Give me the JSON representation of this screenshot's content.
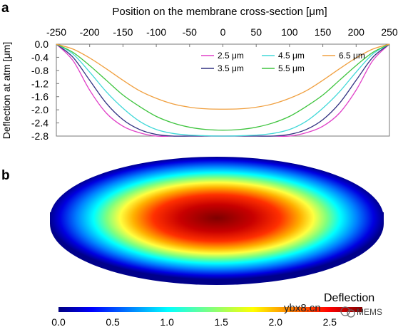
{
  "panels": {
    "a": "a",
    "b": "b"
  },
  "chart_data": [
    {
      "type": "line",
      "xlabel": "Position on the membrane cross-section [μm]",
      "ylabel": "Deflection at atm [μm]",
      "xlim": [
        -250,
        250
      ],
      "ylim": [
        -2.8,
        0.0
      ],
      "x_ticks": [
        -250,
        -200,
        -150,
        -100,
        -50,
        0,
        50,
        100,
        150,
        200,
        250
      ],
      "x_tick_labels": [
        "-250",
        "-200",
        "-150",
        "-100",
        "-50",
        "0",
        "50",
        "100",
        "150",
        "200",
        "250"
      ],
      "y_ticks": [
        0.0,
        -0.4,
        -0.8,
        -1.2,
        -1.6,
        -2.0,
        -2.4,
        -2.8
      ],
      "y_tick_labels": [
        "0.0",
        "-0.4",
        "-0.8",
        "-1.2",
        "-1.6",
        "-2.0",
        "-2.4",
        "-2.8"
      ],
      "grid": false,
      "legend_position": "top-right",
      "series": [
        {
          "name": "2.5 μm",
          "color": "#e040c8",
          "x": [
            -250,
            -225,
            -200,
            -175,
            -150,
            -125,
            -100,
            -75,
            -50,
            -25,
            0,
            25,
            50,
            75,
            100,
            125,
            150,
            175,
            200,
            225,
            250
          ],
          "y": [
            0.0,
            -0.5,
            -1.4,
            -2.1,
            -2.5,
            -2.7,
            -2.8,
            -2.8,
            -2.8,
            -2.8,
            -2.8,
            -2.8,
            -2.8,
            -2.8,
            -2.8,
            -2.7,
            -2.5,
            -2.1,
            -1.4,
            -0.5,
            0.0
          ]
        },
        {
          "name": "3.5 μm",
          "color": "#303080",
          "x": [
            -250,
            -225,
            -200,
            -175,
            -150,
            -125,
            -100,
            -75,
            -50,
            -25,
            0,
            25,
            50,
            75,
            100,
            125,
            150,
            175,
            200,
            225,
            250
          ],
          "y": [
            0.0,
            -0.4,
            -1.1,
            -1.8,
            -2.3,
            -2.6,
            -2.75,
            -2.8,
            -2.8,
            -2.8,
            -2.8,
            -2.8,
            -2.8,
            -2.8,
            -2.75,
            -2.6,
            -2.3,
            -1.8,
            -1.1,
            -0.4,
            0.0
          ]
        },
        {
          "name": "4.5 μm",
          "color": "#40d8d8",
          "x": [
            -250,
            -225,
            -200,
            -175,
            -150,
            -125,
            -100,
            -75,
            -50,
            -25,
            0,
            25,
            50,
            75,
            100,
            125,
            150,
            175,
            200,
            225,
            250
          ],
          "y": [
            0.0,
            -0.3,
            -0.85,
            -1.45,
            -1.95,
            -2.35,
            -2.6,
            -2.72,
            -2.77,
            -2.79,
            -2.8,
            -2.79,
            -2.77,
            -2.72,
            -2.6,
            -2.35,
            -1.95,
            -1.45,
            -0.85,
            -0.3,
            0.0
          ]
        },
        {
          "name": "5.5 μm",
          "color": "#3ec43e",
          "x": [
            -250,
            -225,
            -200,
            -175,
            -150,
            -125,
            -100,
            -75,
            -50,
            -25,
            0,
            25,
            50,
            75,
            100,
            125,
            150,
            175,
            200,
            225,
            250
          ],
          "y": [
            0.0,
            -0.25,
            -0.65,
            -1.1,
            -1.55,
            -1.9,
            -2.2,
            -2.4,
            -2.53,
            -2.6,
            -2.62,
            -2.6,
            -2.53,
            -2.4,
            -2.2,
            -1.9,
            -1.55,
            -1.1,
            -0.65,
            -0.25,
            0.0
          ]
        },
        {
          "name": "6.5 μm",
          "color": "#f0a040",
          "x": [
            -250,
            -225,
            -200,
            -175,
            -150,
            -125,
            -100,
            -75,
            -50,
            -25,
            0,
            25,
            50,
            75,
            100,
            125,
            150,
            175,
            200,
            225,
            250
          ],
          "y": [
            0.0,
            -0.15,
            -0.42,
            -0.75,
            -1.1,
            -1.42,
            -1.65,
            -1.82,
            -1.92,
            -1.97,
            -1.98,
            -1.97,
            -1.92,
            -1.82,
            -1.65,
            -1.42,
            -1.1,
            -0.75,
            -0.42,
            -0.15,
            0.0
          ]
        }
      ]
    },
    {
      "type": "heatmap",
      "shape": "elliptical membrane, deflection field",
      "colorbar_label": "Deflection",
      "colorbar_ticks": [
        0.0,
        0.5,
        1.0,
        1.5,
        2.0,
        2.5
      ],
      "colorbar_tick_labels": [
        "0.0",
        "0.5",
        "1.0",
        "1.5",
        "2.0",
        "2.5"
      ],
      "range": [
        0.0,
        2.8
      ],
      "max_at": "center",
      "colormap": "jet"
    }
  ],
  "watermarks": {
    "site": "ybx8.cn",
    "brand": "MEMS"
  }
}
